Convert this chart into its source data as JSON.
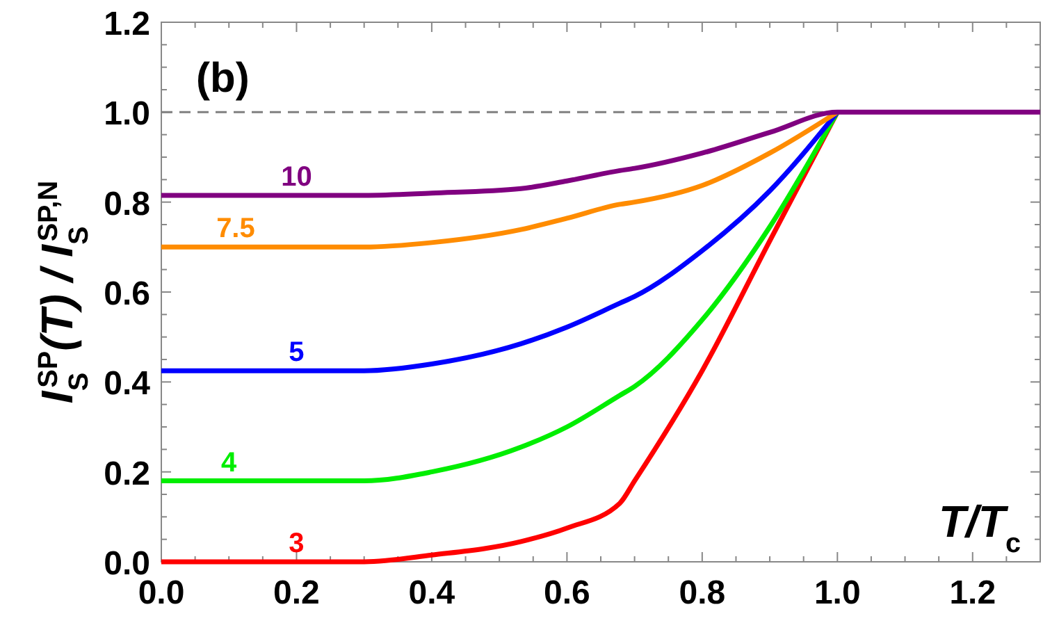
{
  "chart_data": {
    "type": "line",
    "xlabel": "T/T$_{c}$",
    "ylabel": "I$_{S}$$^{SP}$(T) / I$_{S}$$^{SP,N}$",
    "annotations": [
      "(b)"
    ],
    "xlim": [
      0,
      1.3
    ],
    "ylim": [
      0,
      1.2
    ],
    "xticks": [
      {
        "value": 0,
        "label": "0.0"
      },
      0.2,
      0.4,
      0.6,
      0.8,
      {
        "value": 1,
        "label": "1.0"
      },
      1.2
    ],
    "yticks": [
      {
        "value": 0,
        "label": "0.0"
      },
      0.2,
      0.4,
      0.6,
      0.8,
      {
        "value": 1,
        "label": "1.0"
      },
      1.2
    ],
    "grid": false,
    "legend": false,
    "line_style": "solid",
    "marker": "none",
    "ref_lines": [
      {
        "axis": "y",
        "value": 1,
        "label": null,
        "color": "#808080",
        "line_style": "dashed"
      }
    ],
    "x": [
      0,
      0.1,
      0.2,
      0.3,
      0.4,
      0.532,
      0.6,
      0.678,
      0.7,
      0.8,
      0.9,
      1,
      1.15,
      1.3
    ],
    "series": [
      {
        "name": "3",
        "color": "#ff0000",
        "values": [
          0,
          0,
          0,
          0,
          0.015,
          0.045,
          0.075,
          0.13,
          0.18,
          0.425,
          0.714,
          1,
          null,
          null
        ]
      },
      {
        "name": "4",
        "color": "#00ee00",
        "values": [
          0.18,
          0.18,
          0.18,
          0.18,
          0.2,
          0.255,
          0.3,
          0.37,
          0.39,
          0.538,
          0.745,
          1,
          null,
          null
        ]
      },
      {
        "name": "5",
        "color": "#0000ff",
        "values": [
          0.425,
          0.425,
          0.425,
          0.425,
          0.44,
          0.485,
          0.522,
          0.575,
          0.59,
          0.692,
          0.825,
          1,
          null,
          null
        ]
      },
      {
        "name": "7.5",
        "color": "#ff8c00",
        "values": [
          0.7,
          0.7,
          0.7,
          0.7,
          0.71,
          0.739,
          0.764,
          0.795,
          0.8,
          0.837,
          0.909,
          1,
          null,
          null
        ]
      },
      {
        "name": "10",
        "color": "#800080",
        "values": [
          0.815,
          0.815,
          0.815,
          0.815,
          0.82,
          0.83,
          0.847,
          0.87,
          0.875,
          0.909,
          0.955,
          1,
          1,
          1
        ]
      }
    ]
  }
}
